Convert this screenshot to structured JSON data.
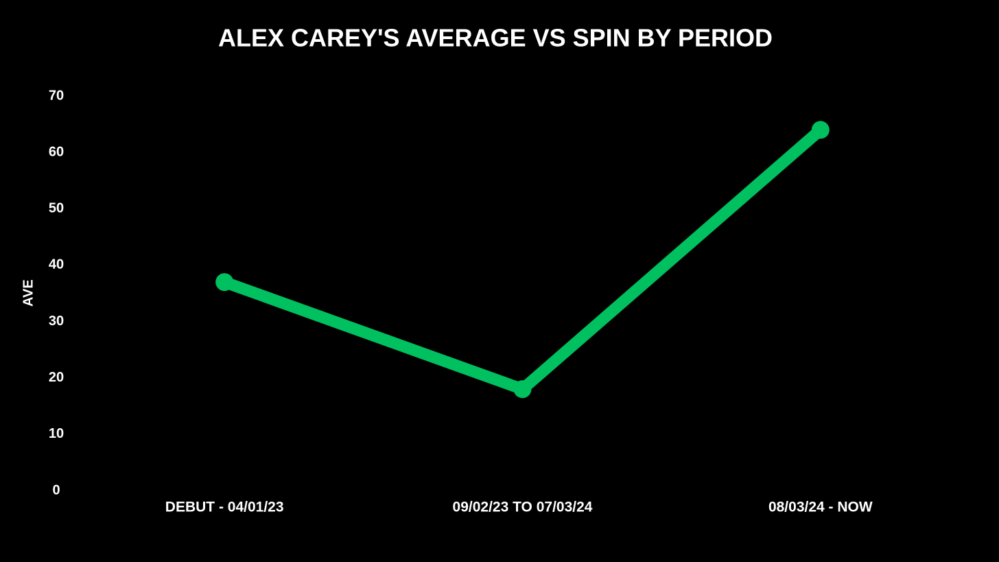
{
  "chart_data": {
    "type": "line",
    "title": "ALEX CAREY'S AVERAGE VS SPIN BY PERIOD",
    "y_label": "AVE",
    "categories": [
      "DEBUT - 04/01/23",
      "09/02/23 TO 07/03/24",
      "08/03/24 - NOW"
    ],
    "values": [
      37,
      18,
      64
    ],
    "color": "#00c060",
    "ylim": [
      0,
      70
    ],
    "yticks": [
      0,
      10,
      20,
      30,
      40,
      50,
      60,
      70
    ],
    "grid": false
  }
}
